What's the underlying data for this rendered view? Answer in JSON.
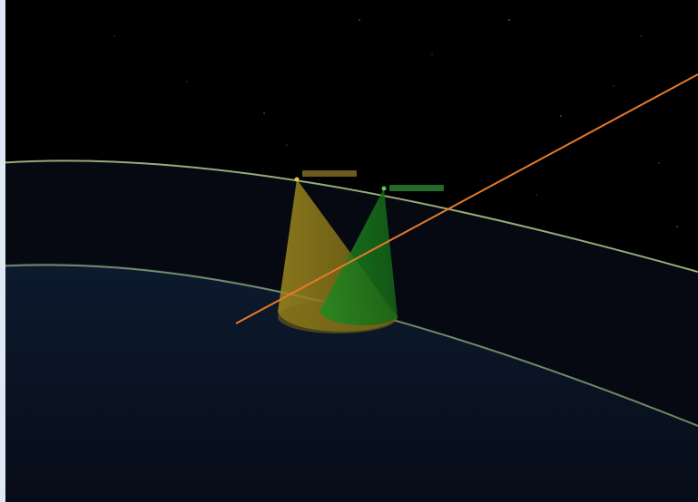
{
  "scene": {
    "background_color": "#000000",
    "earth_color": "#0b1324",
    "orbit_color": "#c6e6a0",
    "measurement_line_color": "#e87a2a",
    "stars_visible": true
  },
  "satellites": [
    {
      "name": "",
      "label_visible": true,
      "color": "#c4a233",
      "cone_fill": "#8a7a1c"
    },
    {
      "name": "",
      "label_visible": true,
      "color": "#42c24a",
      "cone_fill": "#1c7a1c"
    }
  ]
}
